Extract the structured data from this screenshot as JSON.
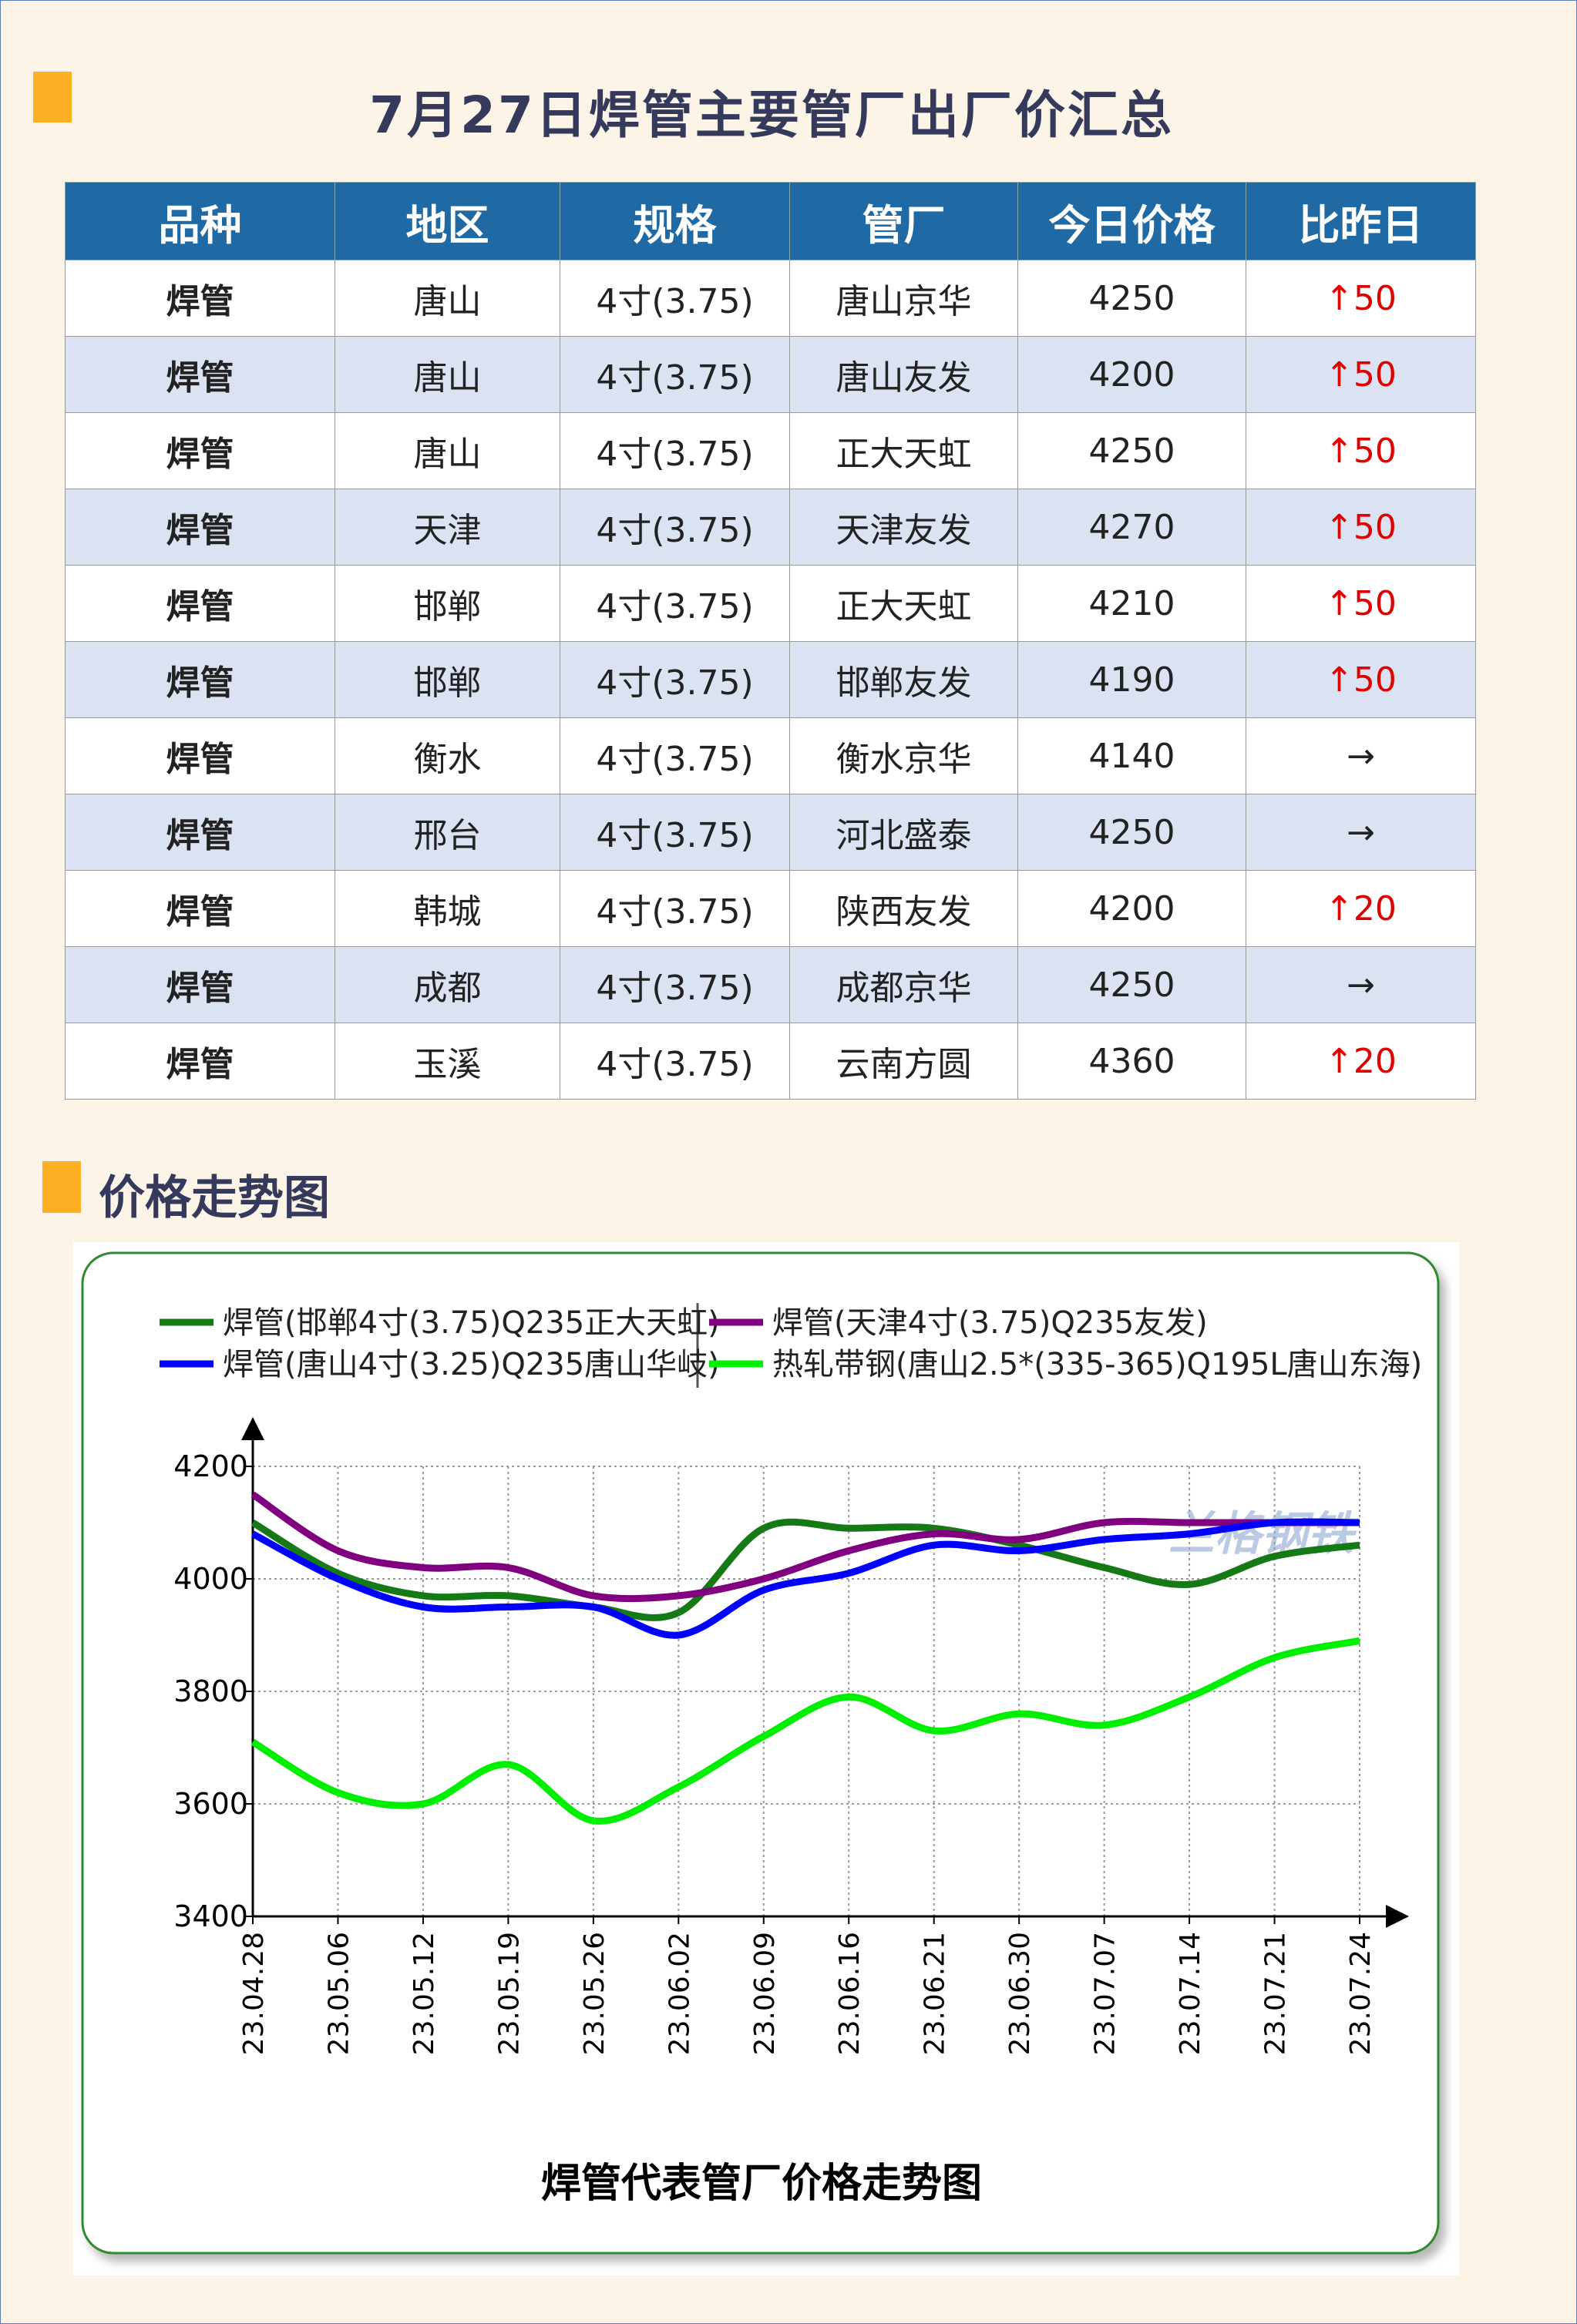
{
  "header": {
    "title": "7月27日焊管主要管厂出厂价汇总"
  },
  "table": {
    "columns": [
      "品种",
      "地区",
      "规格",
      "管厂",
      "今日价格",
      "比昨日"
    ],
    "rows": [
      [
        "焊管",
        "唐山",
        "4寸(3.75)",
        "唐山京华",
        4250,
        "↑50"
      ],
      [
        "焊管",
        "唐山",
        "4寸(3.75)",
        "唐山友发",
        4200,
        "↑50"
      ],
      [
        "焊管",
        "唐山",
        "4寸(3.75)",
        "正大天虹",
        4250,
        "↑50"
      ],
      [
        "焊管",
        "天津",
        "4寸(3.75)",
        "天津友发",
        4270,
        "↑50"
      ],
      [
        "焊管",
        "邯郸",
        "4寸(3.75)",
        "正大天虹",
        4210,
        "↑50"
      ],
      [
        "焊管",
        "邯郸",
        "4寸(3.75)",
        "邯郸友发",
        4190,
        "↑50"
      ],
      [
        "焊管",
        "衡水",
        "4寸(3.75)",
        "衡水京华",
        4140,
        "→"
      ],
      [
        "焊管",
        "邢台",
        "4寸(3.75)",
        "河北盛泰",
        4250,
        "→"
      ],
      [
        "焊管",
        "韩城",
        "4寸(3.75)",
        "陕西友发",
        4200,
        "↑20"
      ],
      [
        "焊管",
        "成都",
        "4寸(3.75)",
        "成都京华",
        4250,
        "→"
      ],
      [
        "焊管",
        "玉溪",
        "4寸(3.75)",
        "云南方圆",
        4360,
        "↑20"
      ]
    ]
  },
  "section_title": "价格走势图",
  "chart_data": {
    "type": "line",
    "title": "焊管代表管厂价格走势图",
    "watermark": "兰格钢铁",
    "categories": [
      "23.04.28",
      "23.05.06",
      "23.05.12",
      "23.05.19",
      "23.05.26",
      "23.06.02",
      "23.06.09",
      "23.06.16",
      "23.06.21",
      "23.06.30",
      "23.07.07",
      "23.07.14",
      "23.07.21",
      "23.07.24"
    ],
    "series": [
      {
        "name": "焊管(邯郸4寸(3.75)Q235正大天虹)",
        "color": "#157a15",
        "values": [
          4100,
          4010,
          3970,
          3970,
          3950,
          3940,
          4090,
          4090,
          4090,
          4060,
          4020,
          3990,
          4040,
          4060
        ]
      },
      {
        "name": "焊管(天津4寸(3.75)Q235友发)",
        "color": "#800080",
        "values": [
          4150,
          4050,
          4020,
          4020,
          3970,
          3970,
          4000,
          4050,
          4080,
          4070,
          4100,
          4100,
          4100,
          4100
        ]
      },
      {
        "name": "焊管(唐山4寸(3.25)Q235唐山华岐)",
        "color": "#0000ff",
        "values": [
          4080,
          4000,
          3950,
          3950,
          3950,
          3900,
          3980,
          4010,
          4060,
          4050,
          4070,
          4080,
          4100,
          4100
        ]
      },
      {
        "name": "热轧带钢(唐山2.5*(335-365)Q195L唐山东海)",
        "color": "#00ee00",
        "values": [
          3710,
          3620,
          3600,
          3670,
          3570,
          3630,
          3720,
          3790,
          3730,
          3760,
          3740,
          3790,
          3860,
          3890
        ]
      }
    ],
    "ylim": [
      3400,
      4200
    ],
    "yticks": [
      3400,
      3600,
      3800,
      4000,
      4200
    ],
    "grid": true
  }
}
